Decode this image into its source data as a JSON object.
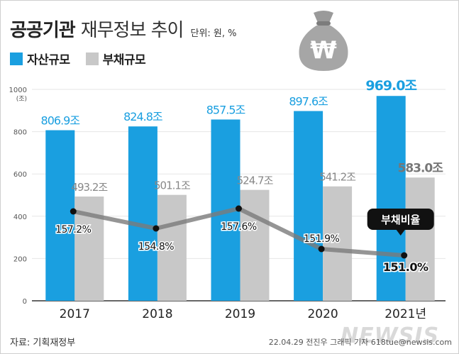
{
  "header": {
    "title_bold": "공공기관",
    "title_rest": "재무정보 추이",
    "unit": "단위: 원, %"
  },
  "footer": {
    "source": "자료: 기획재정부",
    "credit": "22.04.29 전진우 그래픽 기자 618tue@newsis.com",
    "watermark": "NEWSIS"
  },
  "icon": {
    "name": "money-bag-icon",
    "symbol": "₩"
  },
  "colors": {
    "assets": "#1a9fe0",
    "debt": "#c8c8c8",
    "line": "#7a7a7a",
    "axis_text": "#555555"
  },
  "chart_data": {
    "type": "bar",
    "categories": [
      "2017",
      "2018",
      "2019",
      "2020",
      "2021년"
    ],
    "series": [
      {
        "name": "자산규모",
        "values": [
          806.9,
          824.8,
          857.5,
          897.6,
          969.0
        ],
        "labels": [
          "806.9조",
          "824.8조",
          "857.5조",
          "897.6조",
          "969.0조"
        ]
      },
      {
        "name": "부채규모",
        "values": [
          493.2,
          501.1,
          524.7,
          541.2,
          583.0
        ],
        "labels": [
          "493.2조",
          "501.1조",
          "524.7조",
          "541.2조",
          "583.0조"
        ]
      }
    ],
    "ratio_line": {
      "name": "부채비율",
      "values": [
        157.2,
        154.8,
        157.6,
        151.9,
        151.0
      ],
      "labels": [
        "157.2%",
        "154.8%",
        "157.6%",
        "151.9%",
        "151.0%"
      ]
    },
    "ylim": [
      0,
      1000
    ],
    "yticks": [
      "0",
      "200",
      "400",
      "600",
      "800",
      "1000"
    ],
    "y_unit": "(조)",
    "grid": true
  }
}
